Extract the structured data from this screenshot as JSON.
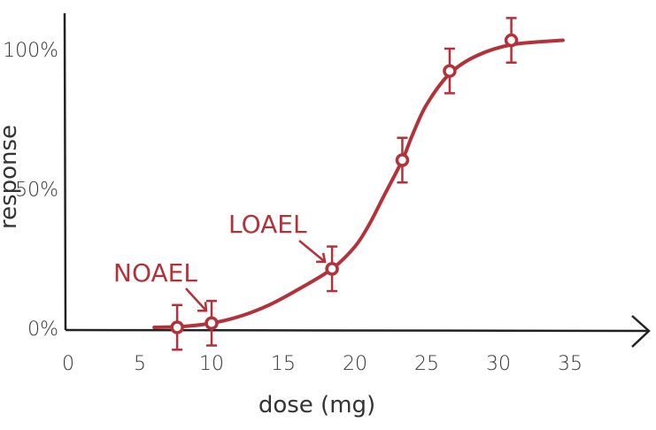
{
  "chart_data": {
    "type": "scatter",
    "title": "",
    "xlabel": "dose (mg)",
    "ylabel": "response",
    "xlim": [
      0,
      35
    ],
    "ylim": [
      0,
      100
    ],
    "x_ticks": [
      "0",
      "5",
      "10",
      "15",
      "20",
      "25",
      "30",
      "35"
    ],
    "x_tick_values": [
      0,
      5,
      10,
      15,
      20,
      25,
      30,
      35
    ],
    "y_ticks": [
      "0%",
      "50%",
      "100%"
    ],
    "y_tick_values": [
      0,
      50,
      100
    ],
    "grid": false,
    "color": "#b3323a",
    "points": [
      {
        "x": 7.6,
        "y": 0,
        "err": 8
      },
      {
        "x": 10,
        "y": 1.5,
        "err": 8
      },
      {
        "x": 18.4,
        "y": 21,
        "err": 8
      },
      {
        "x": 23.3,
        "y": 60,
        "err": 8
      },
      {
        "x": 26.6,
        "y": 92,
        "err": 8
      },
      {
        "x": 30.9,
        "y": 103,
        "err": 8
      }
    ],
    "fit_curve": [
      [
        6,
        0
      ],
      [
        8,
        0.3
      ],
      [
        10,
        1.5
      ],
      [
        12,
        4
      ],
      [
        14,
        8
      ],
      [
        16,
        13.5
      ],
      [
        18.4,
        21
      ],
      [
        20,
        29
      ],
      [
        21,
        37
      ],
      [
        22,
        47
      ],
      [
        23.3,
        60
      ],
      [
        24,
        69
      ],
      [
        25,
        80
      ],
      [
        26.6,
        91
      ],
      [
        28.5,
        97.5
      ],
      [
        31,
        101.5
      ],
      [
        34.5,
        103
      ]
    ],
    "annotations": [
      {
        "text": "NOAEL",
        "x": 10,
        "y": 1.5
      },
      {
        "text": "LOAEL",
        "x": 18.4,
        "y": 21
      }
    ]
  }
}
